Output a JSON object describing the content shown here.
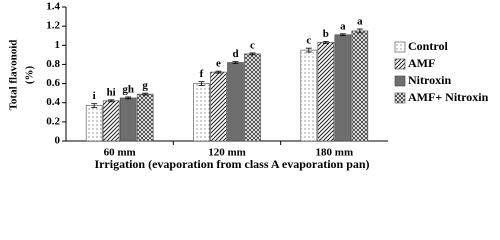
{
  "chart_data": {
    "type": "bar",
    "y_label_lines": [
      "Total  flavonoid",
      "(%)"
    ],
    "x_label": "Irrigation  (evaporation from class A evaporation pan)",
    "categories": [
      "60 mm",
      "120 mm",
      "180 mm"
    ],
    "series": [
      {
        "name": "Control",
        "color": "#555555",
        "pattern": "dots",
        "values": [
          0.37,
          0.6,
          0.95
        ],
        "errors": [
          0.02,
          0.02,
          0.02
        ],
        "letters": [
          "i",
          "f",
          "c"
        ]
      },
      {
        "name": "AMF",
        "color": "#222222",
        "pattern": "diagonal",
        "values": [
          0.42,
          0.72,
          1.03
        ],
        "errors": [
          0.01,
          0.01,
          0.01
        ],
        "letters": [
          "hi",
          "e",
          "b"
        ]
      },
      {
        "name": "Nitroxin",
        "color": "#6e6e6e",
        "pattern": "solid",
        "values": [
          0.45,
          0.82,
          1.11
        ],
        "errors": [
          0.01,
          0.01,
          0.01
        ],
        "letters": [
          "gh",
          "d",
          "a"
        ]
      },
      {
        "name": "AMF+ Nitroxin",
        "color": "#333333",
        "pattern": "cross",
        "values": [
          0.49,
          0.91,
          1.15
        ],
        "errors": [
          0.01,
          0.01,
          0.02
        ],
        "letters": [
          "g",
          "c",
          "a"
        ]
      }
    ],
    "ylim": [
      0,
      1.4
    ],
    "yticks": [
      0,
      0.2,
      0.4,
      0.6,
      0.8,
      1,
      1.2,
      1.4
    ],
    "grid": false
  }
}
